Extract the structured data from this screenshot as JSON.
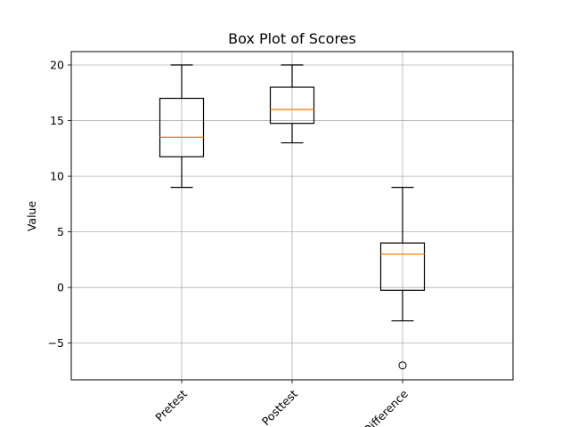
{
  "chart_data": {
    "type": "box",
    "title": "Box Plot of Scores",
    "xlabel": "",
    "ylabel": "Value",
    "ylim": [
      -8.3,
      21.2
    ],
    "yticks": [
      -5,
      0,
      5,
      10,
      15,
      20
    ],
    "grid": true,
    "categories": [
      "Pretest",
      "Posttest",
      "Difference"
    ],
    "boxes": [
      {
        "category": "Pretest",
        "whisker_low": 9,
        "q1": 11.75,
        "median": 13.5,
        "q3": 17,
        "whisker_high": 20,
        "outliers": []
      },
      {
        "category": "Posttest",
        "whisker_low": 13,
        "q1": 14.75,
        "median": 16,
        "q3": 18,
        "whisker_high": 20,
        "outliers": []
      },
      {
        "category": "Difference",
        "whisker_low": -3,
        "q1": -0.25,
        "median": 3,
        "q3": 4,
        "whisker_high": 9,
        "outliers": [
          -7
        ]
      }
    ],
    "colors": {
      "box": "#000000",
      "median": "#ff7f0e",
      "grid": "#b0b0b0"
    }
  }
}
